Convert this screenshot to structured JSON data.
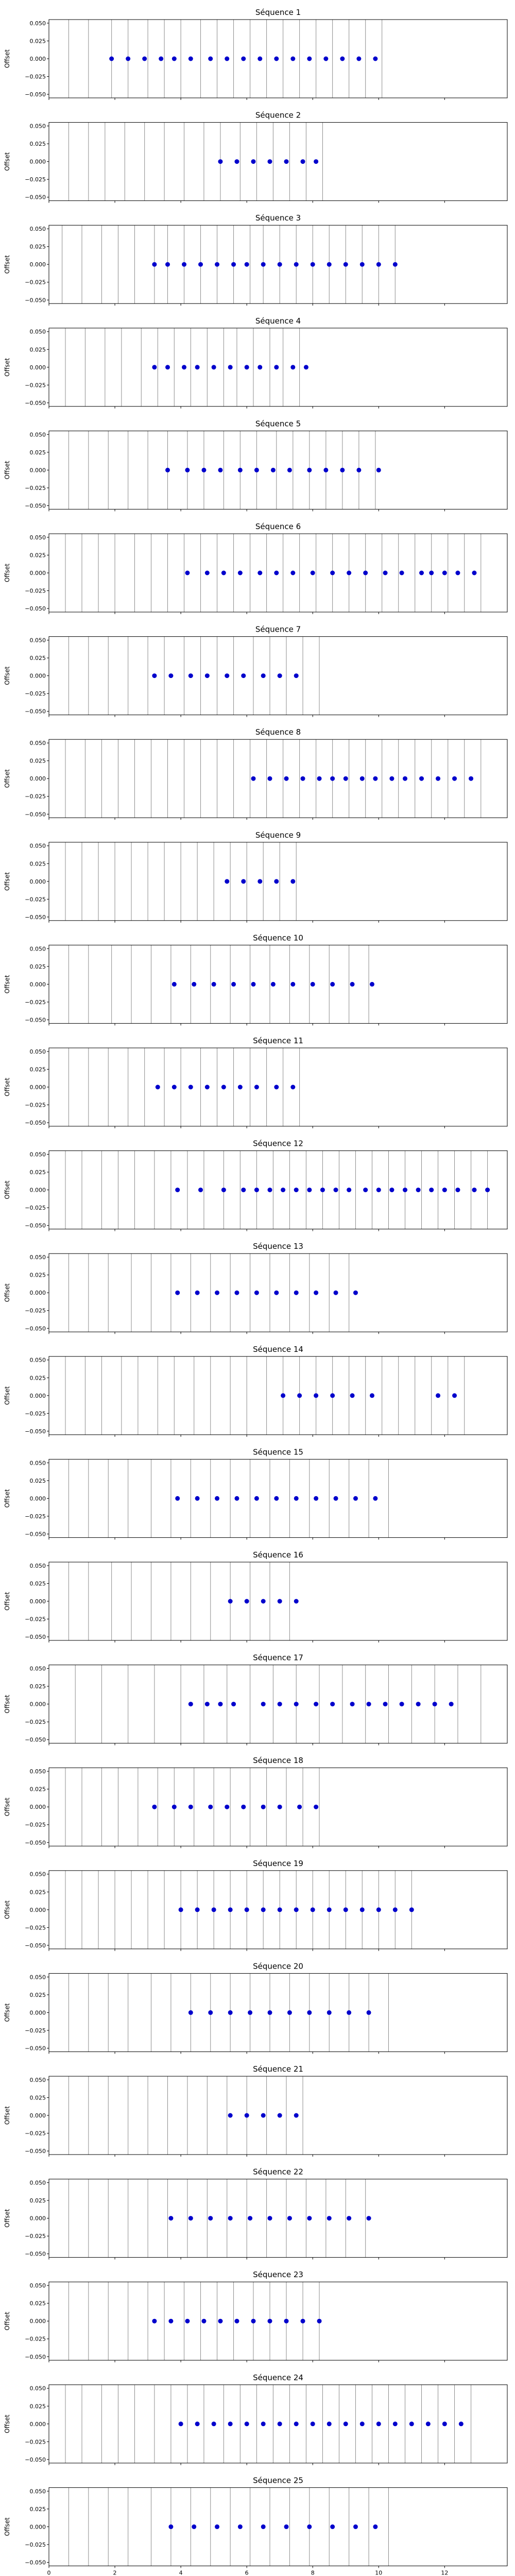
{
  "chart_data": {
    "type": "scatter",
    "xlabel": "Temps (secondes)",
    "ylabel": "Offset",
    "xlim": [
      0,
      13.9
    ],
    "ylim": [
      -0.055,
      0.055
    ],
    "xticks": [
      0,
      2,
      4,
      6,
      8,
      10,
      12
    ],
    "yticks": [
      -0.05,
      -0.025,
      0.0,
      0.025,
      0.05
    ],
    "ytick_labels": [
      "−0.050",
      "−0.025",
      "0.000",
      "0.025",
      "0.050"
    ],
    "shared_x": true,
    "marker_color": "#0000cc",
    "line_color": "#8c8c8c",
    "subplots": [
      {
        "title": "Séquence 1",
        "vlines": [
          0.6,
          1.2,
          1.9,
          2.4,
          3.0,
          3.5,
          4.0,
          4.6,
          5.1,
          5.6,
          6.1,
          6.6,
          7.1,
          7.6,
          8.1,
          8.6,
          9.1,
          9.6,
          10.1
        ],
        "points": [
          1.9,
          2.4,
          2.9,
          3.4,
          3.8,
          4.3,
          4.9,
          5.4,
          5.9,
          6.4,
          6.9,
          7.4,
          7.9,
          8.4,
          8.9,
          9.4,
          9.9
        ]
      },
      {
        "title": "Séquence 2",
        "vlines": [
          0.6,
          1.2,
          1.7,
          2.3,
          2.9,
          3.5,
          4.1,
          4.7,
          5.2,
          5.8,
          6.3,
          6.8,
          7.3,
          7.8,
          8.3
        ],
        "points": [
          5.2,
          5.7,
          6.2,
          6.7,
          7.2,
          7.7,
          8.1
        ]
      },
      {
        "title": "Séquence 3",
        "vlines": [
          0.4,
          1.0,
          1.6,
          2.1,
          2.6,
          3.2,
          3.6,
          4.1,
          4.6,
          5.1,
          5.6,
          6.1,
          6.5,
          7.0,
          7.5,
          8.0,
          8.5,
          9.0,
          9.5,
          10.0,
          10.5
        ],
        "points": [
          3.2,
          3.6,
          4.1,
          4.6,
          5.1,
          5.6,
          6.0,
          6.5,
          7.0,
          7.5,
          8.0,
          8.5,
          9.0,
          9.5,
          10.0,
          10.5
        ]
      },
      {
        "title": "Séquence 4",
        "vlines": [
          0.5,
          1.1,
          1.7,
          2.2,
          2.8,
          3.3,
          3.8,
          4.3,
          4.8,
          5.3,
          5.7,
          6.2,
          6.7,
          7.1,
          7.6
        ],
        "points": [
          3.2,
          3.6,
          4.1,
          4.5,
          5.0,
          5.5,
          6.0,
          6.4,
          6.9,
          7.4,
          7.8
        ]
      },
      {
        "title": "Séquence 5",
        "vlines": [
          0.6,
          1.2,
          1.8,
          2.4,
          3.0,
          3.6,
          4.2,
          4.7,
          5.3,
          5.8,
          6.3,
          6.9,
          7.4,
          7.9,
          8.4,
          8.9,
          9.4,
          9.9
        ],
        "points": [
          3.6,
          4.2,
          4.7,
          5.2,
          5.8,
          6.3,
          6.8,
          7.3,
          7.9,
          8.4,
          8.9,
          9.4,
          10.0
        ]
      },
      {
        "title": "Séquence 6",
        "vlines": [
          0.5,
          1.0,
          1.5,
          2.0,
          2.6,
          3.1,
          3.6,
          4.1,
          4.6,
          5.1,
          5.6,
          6.1,
          6.6,
          7.1,
          7.6,
          8.1,
          8.6,
          9.1,
          9.6,
          10.1,
          10.6,
          11.1,
          11.6,
          12.1,
          12.6,
          13.1
        ],
        "points": [
          4.2,
          4.8,
          5.3,
          5.8,
          6.4,
          6.9,
          7.4,
          8.0,
          8.6,
          9.1,
          9.6,
          10.2,
          10.7,
          11.3,
          11.6,
          12.0,
          12.4,
          12.9
        ]
      },
      {
        "title": "Séquence 7",
        "vlines": [
          0.6,
          1.2,
          1.8,
          2.4,
          3.0,
          3.5,
          4.1,
          4.6,
          5.1,
          5.6,
          6.2,
          6.7,
          7.2,
          7.7,
          8.2
        ],
        "points": [
          3.2,
          3.7,
          4.3,
          4.8,
          5.4,
          5.9,
          6.5,
          7.0,
          7.5
        ]
      },
      {
        "title": "Séquence 8",
        "vlines": [
          0.5,
          1.1,
          1.6,
          2.1,
          2.6,
          3.1,
          3.6,
          4.1,
          4.6,
          5.1,
          5.6,
          6.1,
          6.6,
          7.1,
          7.6,
          8.1,
          8.6,
          9.1,
          9.6,
          10.1,
          10.6,
          11.1,
          11.6,
          12.1,
          12.6,
          13.1
        ],
        "points": [
          6.2,
          6.7,
          7.2,
          7.7,
          8.2,
          8.6,
          9.0,
          9.5,
          9.9,
          10.4,
          10.8,
          11.3,
          11.8,
          12.3,
          12.8
        ]
      },
      {
        "title": "Séquence 9",
        "vlines": [
          0.5,
          1.0,
          1.5,
          2.0,
          2.5,
          3.0,
          3.5,
          4.0,
          4.5,
          5.0,
          5.5,
          6.0,
          6.5,
          7.0,
          7.5
        ],
        "points": [
          5.4,
          5.9,
          6.4,
          6.9,
          7.4
        ]
      },
      {
        "title": "Séquence 10",
        "vlines": [
          0.6,
          1.2,
          1.9,
          2.5,
          3.1,
          3.7,
          4.3,
          4.9,
          5.5,
          6.1,
          6.7,
          7.3,
          7.9,
          8.5,
          9.1,
          9.7
        ],
        "points": [
          3.8,
          4.4,
          5.0,
          5.6,
          6.2,
          6.8,
          7.4,
          8.0,
          8.6,
          9.2,
          9.8
        ]
      },
      {
        "title": "Séquence 11",
        "vlines": [
          0.6,
          1.2,
          1.8,
          2.4,
          2.9,
          3.5,
          4.0,
          4.6,
          5.1,
          5.6,
          6.1,
          6.6,
          7.1,
          7.6
        ],
        "points": [
          3.3,
          3.8,
          4.3,
          4.8,
          5.3,
          5.8,
          6.3,
          6.9,
          7.4
        ]
      },
      {
        "title": "Séquence 12",
        "vlines": [
          0.5,
          1.0,
          1.6,
          2.1,
          2.6,
          3.2,
          3.7,
          4.2,
          4.7,
          5.3,
          5.8,
          6.3,
          6.8,
          7.3,
          7.8,
          8.3,
          8.8,
          9.3,
          9.8,
          10.3,
          10.8,
          11.3,
          11.8,
          12.3,
          12.8,
          13.3
        ],
        "points": [
          3.9,
          4.6,
          5.3,
          5.9,
          6.3,
          6.7,
          7.1,
          7.5,
          7.9,
          8.3,
          8.7,
          9.1,
          9.6,
          10.0,
          10.4,
          10.8,
          11.2,
          11.6,
          12.0,
          12.4,
          12.9,
          13.3
        ]
      },
      {
        "title": "Séquence 13",
        "vlines": [
          0.6,
          1.2,
          1.8,
          2.5,
          3.1,
          3.7,
          4.3,
          4.9,
          5.5,
          6.1,
          6.7,
          7.3,
          7.9,
          8.5,
          9.1
        ],
        "points": [
          3.9,
          4.5,
          5.1,
          5.7,
          6.3,
          6.9,
          7.5,
          8.1,
          8.7,
          9.3
        ]
      },
      {
        "title": "Séquence 14",
        "vlines": [
          0.5,
          1.1,
          1.6,
          2.2,
          2.7,
          3.3,
          3.8,
          4.4,
          4.9,
          5.5,
          6.0,
          6.6,
          7.1,
          7.6,
          8.1,
          8.6,
          9.1,
          9.6,
          10.1,
          10.6,
          11.1,
          11.6,
          12.1,
          12.6
        ],
        "points": [
          7.1,
          7.6,
          8.1,
          8.6,
          9.2,
          9.8,
          11.8,
          12.3
        ]
      },
      {
        "title": "Séquence 15",
        "vlines": [
          0.6,
          1.2,
          1.8,
          2.4,
          3.1,
          3.7,
          4.3,
          4.9,
          5.5,
          6.1,
          6.7,
          7.3,
          7.9,
          8.5,
          9.1,
          9.7,
          10.3
        ],
        "points": [
          3.9,
          4.5,
          5.1,
          5.7,
          6.3,
          6.9,
          7.5,
          8.1,
          8.7,
          9.3,
          9.9
        ]
      },
      {
        "title": "Séquence 16",
        "vlines": [
          0.6,
          1.2,
          1.9,
          2.5,
          3.1,
          3.7,
          4.3,
          4.9,
          5.5,
          6.1,
          6.7,
          7.3
        ],
        "points": [
          5.5,
          6.0,
          6.5,
          7.0,
          7.5
        ]
      },
      {
        "title": "Séquence 17",
        "vlines": [
          0.8,
          1.6,
          2.4,
          3.2,
          4.0,
          4.7,
          5.4,
          6.1,
          6.8,
          7.5,
          8.2,
          8.9,
          9.6,
          10.3,
          11.0,
          11.7,
          12.4,
          13.1
        ],
        "points": [
          4.3,
          4.8,
          5.2,
          5.6,
          6.5,
          7.0,
          7.5,
          8.1,
          8.6,
          9.2,
          9.7,
          10.2,
          10.7,
          11.2,
          11.7,
          12.2
        ]
      },
      {
        "title": "Séquence 18",
        "vlines": [
          0.5,
          1.0,
          1.6,
          2.1,
          2.7,
          3.3,
          3.8,
          4.4,
          5.0,
          5.5,
          6.1,
          6.6,
          7.2,
          7.7,
          8.2
        ],
        "points": [
          3.2,
          3.8,
          4.3,
          4.9,
          5.4,
          5.9,
          6.5,
          7.0,
          7.6,
          8.1
        ]
      },
      {
        "title": "Séquence 19",
        "vlines": [
          0.5,
          1.0,
          1.5,
          2.0,
          2.5,
          3.0,
          3.5,
          4.0,
          4.5,
          5.0,
          5.5,
          6.0,
          6.5,
          7.0,
          7.5,
          8.0,
          8.5,
          9.0,
          9.5,
          10.0,
          10.5,
          11.0
        ],
        "points": [
          4.0,
          4.5,
          5.0,
          5.5,
          6.0,
          6.5,
          7.0,
          7.5,
          8.0,
          8.5,
          9.0,
          9.5,
          10.0,
          10.5,
          11.0
        ]
      },
      {
        "title": "Séquence 20",
        "vlines": [
          0.6,
          1.2,
          1.8,
          2.4,
          3.1,
          3.7,
          4.3,
          4.9,
          5.5,
          6.1,
          6.7,
          7.3,
          7.9,
          8.5,
          9.1,
          9.7,
          10.3
        ],
        "points": [
          4.3,
          4.9,
          5.5,
          6.1,
          6.7,
          7.3,
          7.9,
          8.5,
          9.1,
          9.7
        ]
      },
      {
        "title": "Séquence 21",
        "vlines": [
          0.6,
          1.2,
          1.8,
          2.4,
          3.0,
          3.6,
          4.2,
          4.8,
          5.4,
          6.0,
          6.6,
          7.2,
          7.7
        ],
        "points": [
          5.5,
          6.0,
          6.5,
          7.0,
          7.5
        ]
      },
      {
        "title": "Séquence 22",
        "vlines": [
          0.6,
          1.2,
          1.8,
          2.4,
          3.0,
          3.6,
          4.2,
          4.8,
          5.4,
          6.0,
          6.6,
          7.2,
          7.8,
          8.4,
          9.0,
          9.6
        ],
        "points": [
          3.7,
          4.3,
          4.9,
          5.5,
          6.1,
          6.7,
          7.3,
          7.9,
          8.5,
          9.1,
          9.7
        ]
      },
      {
        "title": "Séquence 23",
        "vlines": [
          0.6,
          1.2,
          1.8,
          2.4,
          3.0,
          3.5,
          4.1,
          4.6,
          5.1,
          5.6,
          6.2,
          6.7,
          7.2,
          7.7,
          8.2
        ],
        "points": [
          3.2,
          3.7,
          4.2,
          4.7,
          5.2,
          5.7,
          6.2,
          6.7,
          7.2,
          7.7,
          8.2
        ]
      },
      {
        "title": "Séquence 24",
        "vlines": [
          0.5,
          1.0,
          1.6,
          2.1,
          2.6,
          3.2,
          3.7,
          4.2,
          4.7,
          5.3,
          5.8,
          6.3,
          6.8,
          7.3,
          7.8,
          8.3,
          8.8,
          9.3,
          9.8,
          10.3,
          10.8,
          11.3,
          11.8,
          12.3,
          12.8
        ],
        "points": [
          4.0,
          4.5,
          5.0,
          5.5,
          6.0,
          6.5,
          7.0,
          7.5,
          8.0,
          8.5,
          9.0,
          9.5,
          10.0,
          10.5,
          11.0,
          11.5,
          12.0,
          12.5
        ]
      },
      {
        "title": "Séquence 25",
        "vlines": [
          0.6,
          1.2,
          1.8,
          2.4,
          3.1,
          3.7,
          4.3,
          4.9,
          5.5,
          6.1,
          6.7,
          7.3,
          7.9,
          8.5,
          9.1,
          9.7,
          10.3
        ],
        "points": [
          3.7,
          4.4,
          5.1,
          5.8,
          6.5,
          7.2,
          7.9,
          8.6,
          9.3,
          9.9
        ]
      }
    ]
  }
}
